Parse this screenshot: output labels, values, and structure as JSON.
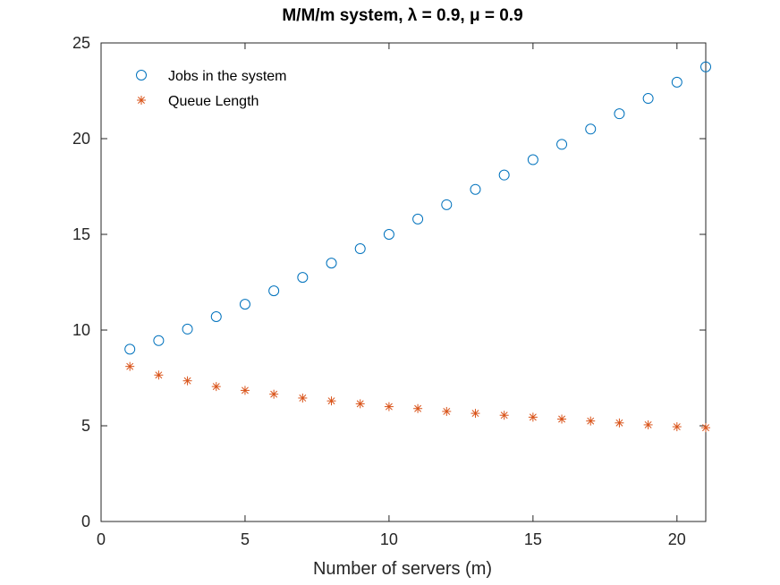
{
  "chart_data": {
    "type": "scatter",
    "title": "M/M/m system, λ = 0.9, μ = 0.9",
    "xlabel": "Number of servers (m)",
    "ylabel": "",
    "xlim": [
      0,
      21
    ],
    "ylim": [
      0,
      25
    ],
    "xticks": [
      0,
      5,
      10,
      15,
      20
    ],
    "yticks": [
      0,
      5,
      10,
      15,
      20,
      25
    ],
    "grid": false,
    "legend_position": "top-left",
    "x": [
      1,
      2,
      3,
      4,
      5,
      6,
      7,
      8,
      9,
      10,
      11,
      12,
      13,
      14,
      15,
      16,
      17,
      18,
      19,
      20,
      21
    ],
    "series": [
      {
        "name": "Jobs in the system",
        "marker": "circle",
        "color": "#0072BD",
        "values": [
          9.0,
          9.45,
          10.05,
          10.7,
          11.35,
          12.05,
          12.75,
          13.5,
          14.25,
          15.0,
          15.8,
          16.55,
          17.35,
          18.1,
          18.9,
          19.7,
          20.5,
          21.3,
          22.1,
          22.95,
          23.75
        ]
      },
      {
        "name": "Queue Length",
        "marker": "asterisk",
        "color": "#D95319",
        "values": [
          8.1,
          7.65,
          7.35,
          7.05,
          6.85,
          6.65,
          6.45,
          6.3,
          6.15,
          6.0,
          5.9,
          5.75,
          5.65,
          5.55,
          5.45,
          5.35,
          5.25,
          5.15,
          5.05,
          4.95,
          4.9
        ]
      }
    ]
  }
}
